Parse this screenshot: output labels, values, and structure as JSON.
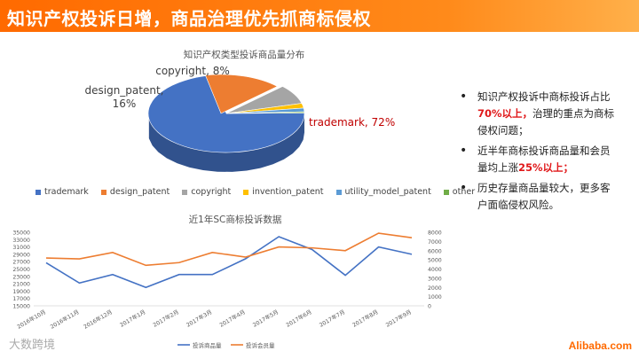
{
  "header": {
    "title": "知识产权投诉日增，商品治理优先抓商标侵权"
  },
  "bullets": [
    {
      "parts": [
        {
          "t": "知识产权投诉中商标投诉占比"
        },
        {
          "t": "70%以上，",
          "hl": true
        },
        {
          "t": "治理的重点为商标侵权问题；"
        }
      ]
    },
    {
      "parts": [
        {
          "t": "近半年商标投诉商品量和会员量均上涨"
        },
        {
          "t": "25%以上；",
          "hl": true
        }
      ]
    },
    {
      "parts": [
        {
          "t": "历史存量商品量较大，更多客户面临侵权风险。"
        }
      ]
    }
  ],
  "watermark": "大数跨境",
  "logo": "Alibaba.com",
  "colors": {
    "accent": "#ff6a00",
    "highlight": "#e0181a"
  },
  "chart_data": [
    {
      "type": "pie",
      "title": "知识产权类型投诉商品量分布",
      "slices": [
        {
          "name": "trademark",
          "value": 72,
          "label": "trademark, 72%",
          "color": "#4472c4"
        },
        {
          "name": "design_patent",
          "value": 16,
          "label": "design_patent, 16%",
          "color": "#ed7d31"
        },
        {
          "name": "copyright",
          "value": 8,
          "label": "copyright, 8%",
          "color": "#a5a5a5"
        },
        {
          "name": "invention_patent",
          "value": 2,
          "label": "",
          "color": "#ffc000"
        },
        {
          "name": "utility_model_patent",
          "value": 1.5,
          "label": "",
          "color": "#5b9bd5"
        },
        {
          "name": "other",
          "value": 0.5,
          "label": "",
          "color": "#70ad47"
        }
      ],
      "legend": "bottom"
    },
    {
      "type": "line",
      "title": "近1年SC商标投诉数据",
      "categories": [
        "2016年10月",
        "2016年11月",
        "2016年12月",
        "2017年1月",
        "2017年2月",
        "2017年3月",
        "2017年4月",
        "2017年5月",
        "2017年6月",
        "2017年7月",
        "2017年8月",
        "2017年9月"
      ],
      "series": [
        {
          "name": "投诉商品量",
          "axis": "left",
          "color": "#4472c4",
          "values": [
            26700,
            21200,
            23500,
            20000,
            23500,
            23500,
            27800,
            33800,
            30300,
            23300,
            31000,
            29000
          ]
        },
        {
          "name": "投诉会员量",
          "axis": "right",
          "color": "#ed7d31",
          "values": [
            5200,
            5100,
            5800,
            4400,
            4700,
            5800,
            5300,
            6400,
            6300,
            6000,
            7900,
            7400
          ]
        }
      ],
      "ylim_left": [
        15000,
        35000
      ],
      "yticks_left": [
        "35000",
        "33000",
        "31000",
        "29000",
        "27000",
        "25000",
        "23000",
        "21000",
        "19000",
        "17000",
        "15000"
      ],
      "ylim_right": [
        0,
        8000
      ],
      "yticks_right": [
        "8000",
        "7000",
        "6000",
        "5000",
        "4000",
        "3000",
        "2000",
        "1000",
        "0"
      ],
      "grid": false,
      "legend": "bottom"
    }
  ]
}
